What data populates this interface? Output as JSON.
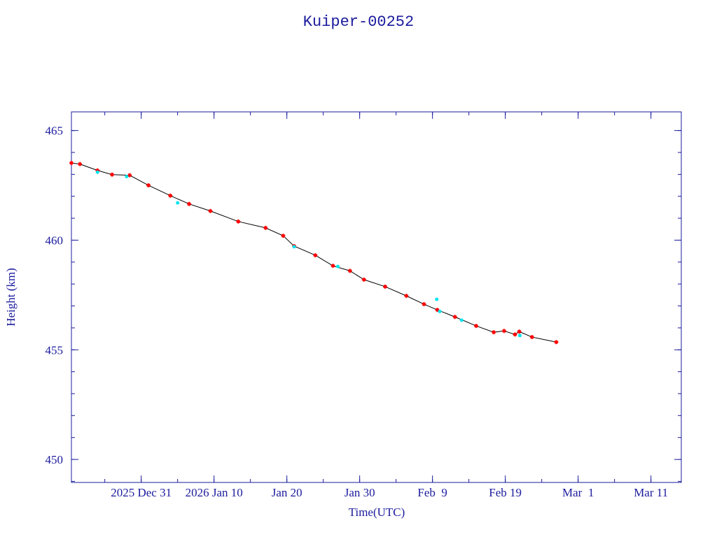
{
  "chart_data": {
    "type": "line",
    "title": "Kuiper-00252",
    "x_label": "Time(UTC)",
    "y_label": "Height (km)",
    "xlim": [
      "2025-12-21T10:00",
      "2026-03-15T04:00"
    ],
    "ylim": [
      448.95,
      465.85
    ],
    "xticks": [
      {
        "value": "2025-12-31",
        "label": "2025 Dec 31"
      },
      {
        "value": "2026-01-10",
        "label": "2026 Jan 10"
      },
      {
        "value": "2026-01-20",
        "label": "Jan 20"
      },
      {
        "value": "2026-01-30",
        "label": "Jan 30"
      },
      {
        "value": "2026-02-09",
        "label": "Feb  9"
      },
      {
        "value": "2026-02-19",
        "label": "Feb 19"
      },
      {
        "value": "2026-03-01",
        "label": "Mar  1"
      },
      {
        "value": "2026-03-11",
        "label": "Mar 11"
      }
    ],
    "yticks": [
      450,
      455,
      460,
      465
    ],
    "x_minor_step_days": 5,
    "y_minor_step": 1,
    "grid": false,
    "series": [
      {
        "color": "#000000",
        "marker_color": "#ff0000",
        "marker": "star",
        "x": [
          "2025-12-21T10:00",
          "2025-12-22T14:00",
          "2025-12-25",
          "2025-12-27",
          "2025-12-29T10:00",
          "2026-01-01",
          "2026-01-04",
          "2026-01-06T14:00",
          "2026-01-09T12:00",
          "2026-01-13T08:00",
          "2026-01-17T02:00",
          "2026-01-19T12:00",
          "2026-01-21",
          "2026-01-23T22:00",
          "2026-01-26T08:00",
          "2026-01-28T16:00",
          "2026-01-30T14:00",
          "2026-02-02T12:00",
          "2026-02-05T10:00",
          "2026-02-07T20:00",
          "2026-02-09T16:00",
          "2026-02-12T02:00",
          "2026-02-15",
          "2026-02-17T10:00",
          "2026-02-18T20:00",
          "2026-02-20T08:00",
          "2026-02-20T22:00",
          "2026-02-22T16:00",
          "2026-02-26"
        ],
        "values": [
          463.52,
          463.47,
          463.18,
          462.99,
          462.96,
          462.5,
          462.03,
          461.65,
          461.33,
          460.85,
          460.56,
          460.2,
          459.73,
          459.31,
          458.83,
          458.6,
          458.2,
          457.88,
          457.46,
          457.08,
          456.82,
          456.5,
          456.09,
          455.8,
          455.86,
          455.7,
          455.83,
          455.58,
          455.35
        ]
      },
      {
        "color": "#00e5ee",
        "marker": "dot",
        "x": [
          "2025-12-25",
          "2025-12-29",
          "2026-01-05",
          "2026-01-21",
          "2026-01-27",
          "2026-02-09T14:00",
          "2026-02-10",
          "2026-02-13",
          "2026-02-21"
        ],
        "values": [
          463.1,
          462.9,
          461.7,
          459.7,
          458.8,
          457.3,
          456.75,
          456.35,
          455.65
        ]
      }
    ]
  }
}
